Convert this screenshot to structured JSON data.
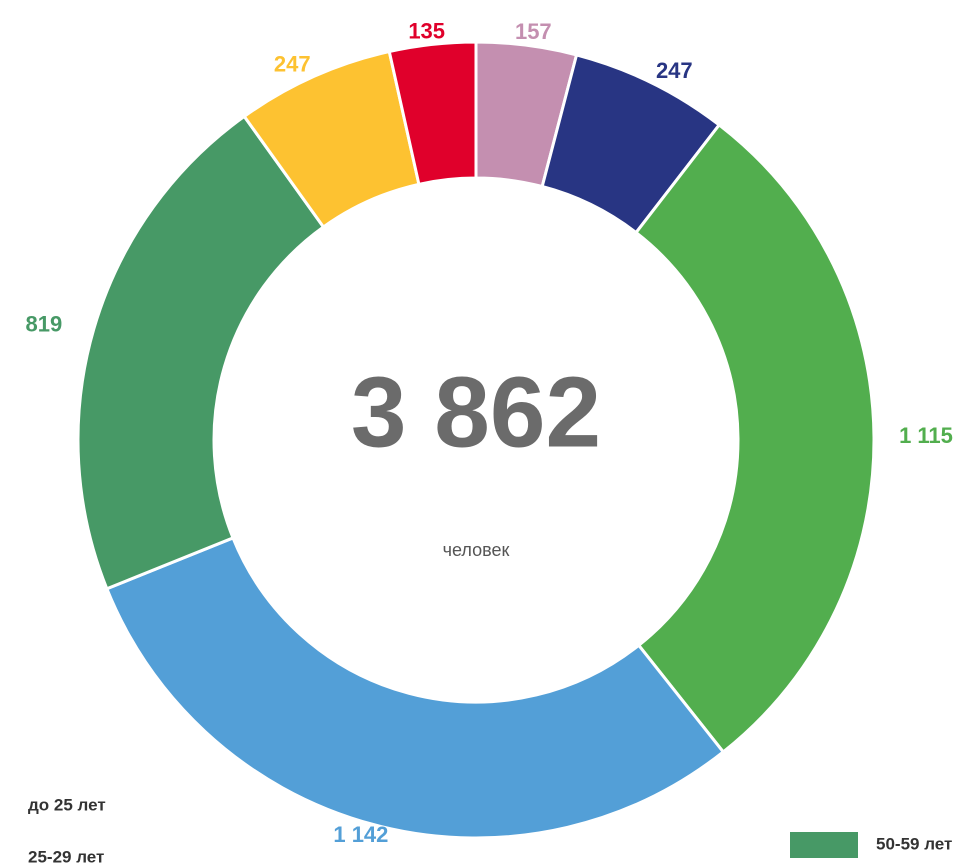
{
  "chart_data": {
    "type": "donut",
    "categories": [
      null,
      null,
      null,
      null,
      "50-59 лет",
      null,
      null
    ],
    "values": [
      157,
      247,
      1115,
      1142,
      819,
      247,
      135
    ],
    "value_labels": [
      "157",
      "247",
      "1 115",
      "1 142",
      "819",
      "247",
      "135"
    ],
    "colors": [
      "#c48fb0",
      "#283583",
      "#52ae4e",
      "#539fd7",
      "#479966",
      "#fdc231",
      "#e0002b"
    ],
    "center_value": "3 862",
    "center_text": "человек",
    "legend_texts": [
      "до 25 лет",
      "25-29 лет"
    ]
  }
}
